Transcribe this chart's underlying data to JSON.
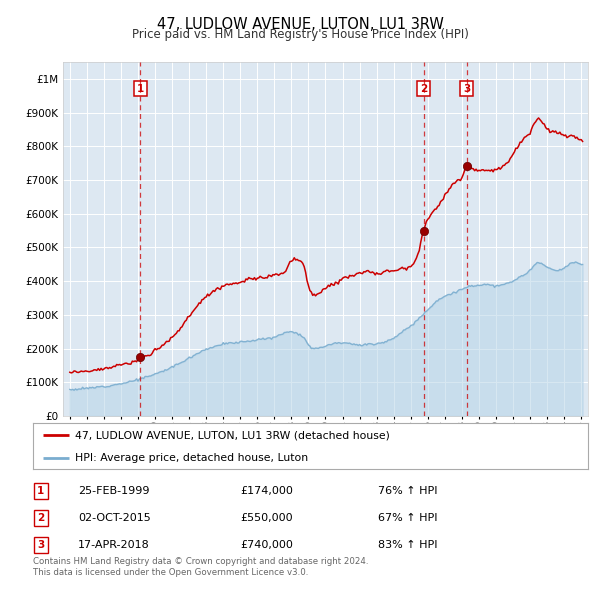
{
  "title": "47, LUDLOW AVENUE, LUTON, LU1 3RW",
  "subtitle": "Price paid vs. HM Land Registry's House Price Index (HPI)",
  "legend_label1": "47, LUDLOW AVENUE, LUTON, LU1 3RW (detached house)",
  "legend_label2": "HPI: Average price, detached house, Luton",
  "line1_color": "#cc0000",
  "line2_color": "#7aadcf",
  "fill2_color": "#b8d5e8",
  "transactions": [
    {
      "num": 1,
      "date": "25-FEB-1999",
      "price": 174000,
      "pct": "76%",
      "year": 1999.12
    },
    {
      "num": 2,
      "date": "02-OCT-2015",
      "price": 550000,
      "pct": "67%",
      "year": 2015.75
    },
    {
      "num": 3,
      "date": "17-APR-2018",
      "price": 740000,
      "pct": "83%",
      "year": 2018.29
    }
  ],
  "footer_line1": "Contains HM Land Registry data © Crown copyright and database right 2024.",
  "footer_line2": "This data is licensed under the Open Government Licence v3.0.",
  "ylim": [
    0,
    1050000
  ],
  "yticks": [
    0,
    100000,
    200000,
    300000,
    400000,
    500000,
    600000,
    700000,
    800000,
    900000,
    1000000
  ],
  "ytick_labels": [
    "£0",
    "£100K",
    "£200K",
    "£300K",
    "£400K",
    "£500K",
    "£600K",
    "£700K",
    "£800K",
    "£900K",
    "£1M"
  ],
  "xlim_start": 1994.6,
  "xlim_end": 2025.4,
  "xticks": [
    1995,
    1996,
    1997,
    1998,
    1999,
    2000,
    2001,
    2002,
    2003,
    2004,
    2005,
    2006,
    2007,
    2008,
    2009,
    2010,
    2011,
    2012,
    2013,
    2014,
    2015,
    2016,
    2017,
    2018,
    2019,
    2020,
    2021,
    2022,
    2023,
    2024,
    2025
  ]
}
